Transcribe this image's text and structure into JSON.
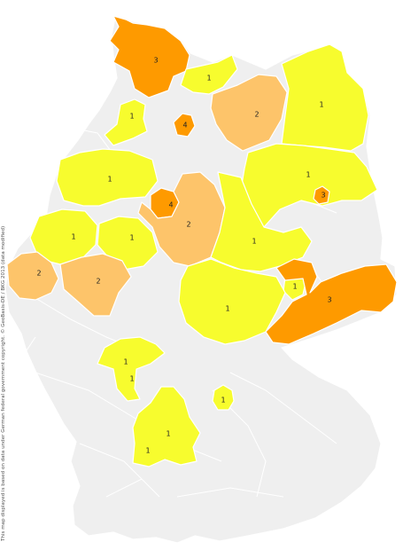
{
  "credit": "This map displayed is based on data under German federal government copyright. © GeoBasis-DE / BKG 2013 (data modified)",
  "colors": {
    "background_region": "#efefef",
    "count_1": "#f7fc2e",
    "count_2": "#fdc46a",
    "count_3_plus": "#fe9a00",
    "border": "#ffffff"
  },
  "regions": [
    {
      "label": "3",
      "count": 3
    },
    {
      "label": "1",
      "count": 1
    },
    {
      "label": "1",
      "count": 1
    },
    {
      "label": "4",
      "count": 4
    },
    {
      "label": "2",
      "count": 2
    },
    {
      "label": "1",
      "count": 1
    },
    {
      "label": "1",
      "count": 1
    },
    {
      "label": "1",
      "count": 1
    },
    {
      "label": "3",
      "count": 3
    },
    {
      "label": "4",
      "count": 4
    },
    {
      "label": "2",
      "count": 2
    },
    {
      "label": "1",
      "count": 1
    },
    {
      "label": "1",
      "count": 1
    },
    {
      "label": "1",
      "count": 1
    },
    {
      "label": "2",
      "count": 2
    },
    {
      "label": "2",
      "count": 2
    },
    {
      "label": "1",
      "count": 1
    },
    {
      "label": "1",
      "count": 1
    },
    {
      "label": "3",
      "count": 3
    },
    {
      "label": "1",
      "count": 1
    },
    {
      "label": "1",
      "count": 1
    },
    {
      "label": "1",
      "count": 1
    },
    {
      "label": "1",
      "count": 1
    },
    {
      "label": "1",
      "count": 1
    }
  ]
}
